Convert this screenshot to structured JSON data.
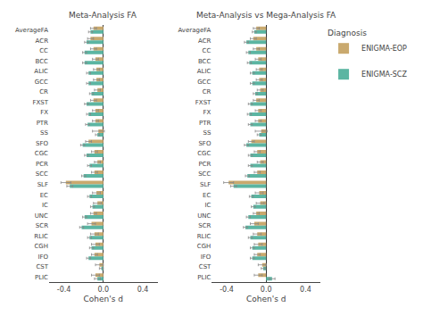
{
  "chart_data": [
    {
      "type": "bar",
      "orientation": "horizontal",
      "title": "Meta-Analysis FA",
      "xlabel": "Cohen's d",
      "categories": [
        "AverageFA",
        "ACR",
        "CC",
        "BCC",
        "ALIC",
        "GCC",
        "CR",
        "FXST",
        "FX",
        "PTR",
        "SS",
        "SFO",
        "CGC",
        "PCR",
        "SCC",
        "SLF",
        "EC",
        "IC",
        "UNC",
        "SCR",
        "RLIC",
        "CGH",
        "IFO",
        "CST",
        "PLIC"
      ],
      "series": [
        {
          "name": "ENIGMA-EOP",
          "color": "#C9A96E",
          "values": [
            -0.1,
            -0.13,
            -0.1,
            -0.08,
            -0.07,
            -0.07,
            -0.06,
            -0.1,
            -0.08,
            -0.08,
            -0.05,
            -0.15,
            -0.09,
            -0.06,
            -0.09,
            -0.38,
            -0.07,
            -0.06,
            -0.1,
            -0.12,
            -0.09,
            -0.08,
            -0.09,
            -0.04,
            -0.08
          ],
          "errors": [
            0.03,
            0.03,
            0.03,
            0.03,
            0.03,
            0.03,
            0.03,
            0.03,
            0.03,
            0.03,
            0.06,
            0.03,
            0.03,
            0.03,
            0.03,
            0.05,
            0.04,
            0.04,
            0.03,
            0.04,
            0.04,
            0.04,
            0.03,
            0.04,
            0.04
          ]
        },
        {
          "name": "ENIGMA-SCZ",
          "color": "#5BB5A2",
          "values": [
            -0.13,
            -0.17,
            -0.19,
            -0.19,
            -0.15,
            -0.15,
            -0.12,
            -0.17,
            -0.15,
            -0.16,
            -0.06,
            -0.21,
            -0.17,
            -0.14,
            -0.2,
            -0.34,
            -0.14,
            -0.11,
            -0.19,
            -0.22,
            -0.14,
            -0.12,
            -0.15,
            -0.02,
            -0.06
          ],
          "errors": [
            0.02,
            0.02,
            0.02,
            0.02,
            0.02,
            0.02,
            0.02,
            0.02,
            0.02,
            0.02,
            0.02,
            0.02,
            0.02,
            0.02,
            0.02,
            0.03,
            0.02,
            0.02,
            0.02,
            0.02,
            0.02,
            0.02,
            0.02,
            0.02,
            0.03
          ]
        }
      ],
      "xlim": [
        -0.55,
        0.55
      ],
      "xticks": [
        -0.4,
        {
          "value": 0,
          "label": "0.0"
        },
        0.4
      ],
      "grid": false,
      "legend": "upper right",
      "legend_title": "Diagnosis"
    },
    {
      "type": "bar",
      "orientation": "horizontal",
      "title": "Meta-Analysis vs Mega-Analysis FA",
      "xlabel": "Cohen's d",
      "categories": [
        "AverageFA",
        "ACR",
        "CC",
        "BCC",
        "ALIC",
        "GCC",
        "CR",
        "FXST",
        "FX",
        "PTR",
        "SS",
        "SFO",
        "CGC",
        "PCR",
        "SCC",
        "SLF",
        "EC",
        "IC",
        "UNC",
        "SCR",
        "RLIC",
        "CGH",
        "IFO",
        "CST",
        "PLIC"
      ],
      "series": [
        {
          "name": "ENIGMA-EOP",
          "color": "#C9A96E",
          "values": [
            -0.1,
            -0.13,
            -0.1,
            -0.08,
            -0.07,
            -0.07,
            -0.06,
            -0.1,
            -0.08,
            -0.08,
            -0.05,
            -0.15,
            -0.09,
            -0.06,
            -0.09,
            -0.38,
            -0.07,
            -0.06,
            -0.1,
            -0.12,
            -0.09,
            -0.08,
            -0.09,
            -0.04,
            -0.08
          ],
          "errors": [
            0.03,
            0.03,
            0.03,
            0.03,
            0.03,
            0.03,
            0.03,
            0.03,
            0.03,
            0.03,
            0.06,
            0.03,
            0.03,
            0.03,
            0.03,
            0.05,
            0.04,
            0.04,
            0.03,
            0.04,
            0.04,
            0.04,
            0.03,
            0.04,
            0.04
          ]
        },
        {
          "name": "ENIGMA-SCZ",
          "color": "#5BB5A2",
          "values": [
            -0.12,
            -0.2,
            -0.18,
            -0.17,
            -0.14,
            -0.14,
            -0.11,
            -0.16,
            -0.17,
            -0.16,
            -0.07,
            -0.2,
            -0.16,
            -0.16,
            -0.19,
            -0.33,
            -0.15,
            -0.13,
            -0.18,
            -0.21,
            -0.16,
            -0.14,
            -0.14,
            -0.03,
            0.06
          ],
          "errors": [
            0.02,
            0.02,
            0.02,
            0.02,
            0.02,
            0.02,
            0.02,
            0.02,
            0.02,
            0.02,
            0.02,
            0.02,
            0.02,
            0.02,
            0.02,
            0.03,
            0.02,
            0.02,
            0.02,
            0.02,
            0.02,
            0.02,
            0.02,
            0.02,
            0.03
          ]
        }
      ],
      "xlim": [
        -0.55,
        0.55
      ],
      "xticks": [
        -0.4,
        {
          "value": 0,
          "label": "0.0"
        },
        0.4
      ],
      "grid": false
    }
  ]
}
